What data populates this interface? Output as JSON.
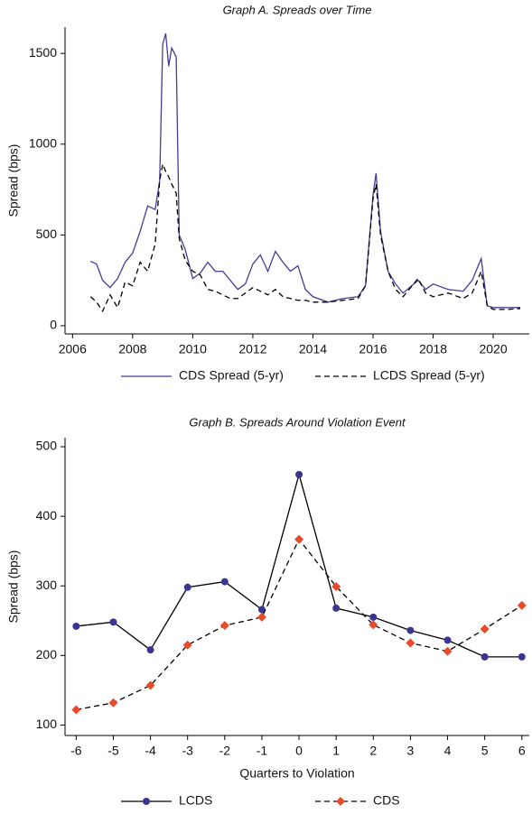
{
  "chart_data": [
    {
      "type": "line",
      "title": "Graph A. Spreads over Time",
      "y_label": "Spread (bps)",
      "x": [
        2006.6,
        2006.8,
        2007.0,
        2007.25,
        2007.5,
        2007.75,
        2008.0,
        2008.25,
        2008.5,
        2008.75,
        2008.9,
        2009.0,
        2009.1,
        2009.2,
        2009.3,
        2009.45,
        2009.55,
        2009.75,
        2010.0,
        2010.25,
        2010.5,
        2010.75,
        2011.0,
        2011.25,
        2011.5,
        2011.75,
        2012.0,
        2012.25,
        2012.5,
        2012.75,
        2013.0,
        2013.25,
        2013.5,
        2013.75,
        2014.0,
        2014.5,
        2015.0,
        2015.5,
        2015.75,
        2016.0,
        2016.1,
        2016.25,
        2016.5,
        2016.75,
        2017.0,
        2017.5,
        2017.75,
        2018.0,
        2018.5,
        2019.0,
        2019.3,
        2019.6,
        2019.8,
        2020.0,
        2020.5,
        2020.9
      ],
      "series": [
        {
          "name": "CDS Spread (5-yr)",
          "color": "#463c96",
          "dash": false,
          "values": [
            355,
            340,
            250,
            210,
            260,
            350,
            400,
            520,
            660,
            640,
            800,
            1550,
            1610,
            1430,
            1530,
            1480,
            500,
            420,
            260,
            290,
            350,
            300,
            300,
            250,
            200,
            230,
            340,
            390,
            300,
            410,
            350,
            300,
            330,
            200,
            160,
            130,
            150,
            160,
            220,
            720,
            840,
            520,
            300,
            230,
            180,
            250,
            200,
            230,
            200,
            190,
            250,
            370,
            110,
            100,
            100,
            100
          ]
        },
        {
          "name": "LCDS Spread (5-yr)",
          "color": "#000000",
          "dash": true,
          "values": [
            160,
            130,
            80,
            170,
            100,
            240,
            220,
            350,
            300,
            450,
            800,
            890,
            850,
            820,
            780,
            730,
            480,
            360,
            300,
            280,
            200,
            190,
            170,
            150,
            150,
            180,
            210,
            190,
            170,
            200,
            160,
            150,
            140,
            140,
            130,
            130,
            140,
            150,
            220,
            700,
            780,
            500,
            300,
            200,
            160,
            260,
            180,
            160,
            180,
            150,
            180,
            300,
            110,
            90,
            90,
            95
          ]
        }
      ],
      "xlim": [
        2005.75,
        2021.2
      ],
      "xticks": [
        2006,
        2008,
        2010,
        2012,
        2014,
        2016,
        2018,
        2020
      ],
      "ylim": [
        -45,
        1645
      ],
      "yticks": [
        0,
        500,
        1000,
        1500
      ]
    },
    {
      "type": "line",
      "title": "Graph B. Spreads Around Violation Event",
      "y_label": "Spread (bps)",
      "x_label": "Quarters to Violation",
      "x": [
        -6,
        -5,
        -4,
        -3,
        -2,
        -1,
        0,
        1,
        2,
        3,
        4,
        5,
        6
      ],
      "series": [
        {
          "name": "LCDS",
          "color": "#000000",
          "marker_color": "#3b3592",
          "marker": "circle",
          "dash": false,
          "values": [
            242,
            248,
            208,
            298,
            306,
            266,
            460,
            268,
            255,
            236,
            222,
            198,
            198
          ]
        },
        {
          "name": "CDS",
          "color": "#000000",
          "marker_color": "#ea4a2a",
          "marker": "diamond",
          "dash": true,
          "values": [
            122,
            132,
            157,
            215,
            243,
            255,
            367,
            299,
            244,
            218,
            206,
            238,
            272
          ]
        }
      ],
      "xlim": [
        -6.3,
        6.2
      ],
      "xticks": [
        -6,
        -5,
        -4,
        -3,
        -2,
        -1,
        0,
        1,
        2,
        3,
        4,
        5,
        6
      ],
      "ylim": [
        85,
        513
      ],
      "yticks": [
        100,
        200,
        300,
        400,
        500
      ]
    }
  ]
}
